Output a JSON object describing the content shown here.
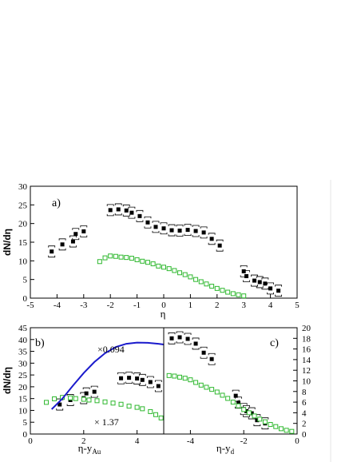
{
  "chart_data": [
    {
      "type": "scatter",
      "panel_label": "a)",
      "xlabel": "η",
      "ylabel": "dN/dη",
      "xlim": [
        -5,
        5
      ],
      "ylim": [
        0,
        30
      ],
      "xticks": [
        "-5",
        "-4",
        "-3",
        "-2",
        "-1",
        "0",
        "1",
        "2",
        "3",
        "4",
        "5"
      ],
      "yticks": [
        "0",
        "5",
        "10",
        "15",
        "20",
        "25",
        "30"
      ],
      "series": [
        {
          "marker": "filled-square-with-brackets",
          "color": "#000000",
          "points": [
            [
              -4.2,
              12.5
            ],
            [
              -3.8,
              14.4
            ],
            [
              -3.4,
              15.2
            ],
            [
              -3.3,
              17.2
            ],
            [
              -3.0,
              17.9
            ],
            [
              -2.0,
              23.6
            ],
            [
              -1.7,
              23.8
            ],
            [
              -1.4,
              23.5
            ],
            [
              -1.2,
              22.9
            ],
            [
              -0.9,
              22.0
            ],
            [
              -0.6,
              20.3
            ],
            [
              -0.3,
              19.1
            ],
            [
              0.0,
              18.7
            ],
            [
              0.3,
              18.2
            ],
            [
              0.6,
              18.1
            ],
            [
              0.9,
              18.3
            ],
            [
              1.2,
              18.0
            ],
            [
              1.5,
              17.6
            ],
            [
              1.8,
              15.9
            ],
            [
              2.1,
              14.1
            ],
            [
              3.0,
              7.2
            ],
            [
              3.1,
              5.9
            ],
            [
              3.4,
              4.7
            ],
            [
              3.6,
              4.3
            ],
            [
              3.8,
              3.9
            ],
            [
              4.0,
              2.6
            ],
            [
              4.3,
              2.0
            ]
          ]
        },
        {
          "marker": "open-square",
          "color": "#2eb82e",
          "points": [
            [
              -2.4,
              9.8
            ],
            [
              -2.2,
              10.8
            ],
            [
              -2.0,
              11.3
            ],
            [
              -1.8,
              11.2
            ],
            [
              -1.6,
              11.0
            ],
            [
              -1.4,
              10.9
            ],
            [
              -1.2,
              10.7
            ],
            [
              -1.0,
              10.3
            ],
            [
              -0.8,
              9.9
            ],
            [
              -0.6,
              9.6
            ],
            [
              -0.4,
              9.2
            ],
            [
              -0.2,
              8.6
            ],
            [
              0.0,
              8.3
            ],
            [
              0.2,
              7.9
            ],
            [
              0.4,
              7.4
            ],
            [
              0.6,
              6.8
            ],
            [
              0.8,
              6.3
            ],
            [
              1.0,
              5.7
            ],
            [
              1.2,
              5.0
            ],
            [
              1.4,
              4.4
            ],
            [
              1.6,
              3.8
            ],
            [
              1.8,
              3.2
            ],
            [
              2.0,
              2.6
            ],
            [
              2.2,
              2.1
            ],
            [
              2.4,
              1.6
            ],
            [
              2.6,
              1.2
            ],
            [
              2.8,
              0.9
            ],
            [
              3.0,
              0.6
            ]
          ]
        }
      ]
    },
    {
      "type": "scatter",
      "panel_label": "b)",
      "xlabel": "η-y",
      "xlabel_sub": "Au",
      "ylabel": "dN/dη",
      "xlim": [
        0,
        5
      ],
      "ylim": [
        0,
        45
      ],
      "xticks": [
        "0",
        "2",
        "4"
      ],
      "yticks": [
        "0",
        "5",
        "10",
        "15",
        "20",
        "25",
        "30",
        "35",
        "40",
        "45"
      ],
      "annotations": [
        "×0.094",
        "× 1.37"
      ],
      "series": [
        {
          "marker": "filled-square-with-brackets",
          "color": "#000000",
          "points": [
            [
              1.1,
              12.5
            ],
            [
              1.5,
              14.4
            ],
            [
              2.0,
              15.2
            ],
            [
              2.1,
              17.2
            ],
            [
              2.4,
              17.9
            ],
            [
              3.4,
              23.6
            ],
            [
              3.7,
              23.8
            ],
            [
              4.0,
              23.5
            ],
            [
              4.2,
              22.9
            ],
            [
              4.5,
              22.0
            ],
            [
              4.8,
              20.3
            ]
          ]
        },
        {
          "marker": "open-square",
          "color": "#2eb82e",
          "points": [
            [
              0.6,
              13.4
            ],
            [
              0.9,
              14.9
            ],
            [
              1.2,
              15.5
            ],
            [
              1.5,
              15.3
            ],
            [
              1.7,
              15.0
            ],
            [
              2.0,
              14.7
            ],
            [
              2.2,
              14.4
            ],
            [
              2.5,
              14.1
            ],
            [
              2.8,
              13.6
            ],
            [
              3.1,
              13.1
            ],
            [
              3.4,
              12.6
            ],
            [
              3.7,
              11.8
            ],
            [
              4.0,
              11.3
            ],
            [
              4.2,
              10.7
            ],
            [
              4.5,
              9.5
            ],
            [
              4.7,
              8.2
            ],
            [
              4.9,
              6.8
            ]
          ]
        },
        {
          "marker": "line",
          "color": "#1a1acc",
          "points": [
            [
              0.8,
              10.5
            ],
            [
              1.2,
              15.0
            ],
            [
              1.6,
              20.5
            ],
            [
              2.0,
              25.8
            ],
            [
              2.4,
              30.5
            ],
            [
              2.8,
              34.2
            ],
            [
              3.2,
              36.8
            ],
            [
              3.6,
              38.2
            ],
            [
              4.0,
              38.7
            ],
            [
              4.4,
              38.6
            ],
            [
              4.8,
              38.2
            ],
            [
              5.0,
              37.9
            ]
          ]
        }
      ]
    },
    {
      "type": "scatter",
      "panel_label": "c)",
      "xlabel": "η-y",
      "xlabel_sub": "d",
      "xlim": [
        -5,
        0
      ],
      "ylim": [
        0,
        20
      ],
      "xticks": [
        "-4",
        "-2",
        "0"
      ],
      "yticks": [
        "0",
        "2",
        "4",
        "6",
        "8",
        "10",
        "12",
        "14",
        "16",
        "18",
        "20"
      ],
      "series": [
        {
          "marker": "filled-square-with-brackets",
          "color": "#000000",
          "points": [
            [
              -4.7,
              18.0
            ],
            [
              -4.4,
              18.2
            ],
            [
              -4.1,
              17.9
            ],
            [
              -3.8,
              17.0
            ],
            [
              -3.5,
              15.3
            ],
            [
              -3.2,
              14.1
            ],
            [
              -2.3,
              7.2
            ],
            [
              -2.2,
              5.9
            ],
            [
              -2.0,
              4.7
            ],
            [
              -1.9,
              4.3
            ],
            [
              -1.7,
              3.9
            ],
            [
              -1.5,
              2.6
            ],
            [
              -1.2,
              2.0
            ]
          ]
        },
        {
          "marker": "open-square",
          "color": "#2eb82e",
          "points": [
            [
              -4.8,
              11.0
            ],
            [
              -4.6,
              10.9
            ],
            [
              -4.4,
              10.7
            ],
            [
              -4.2,
              10.5
            ],
            [
              -4.0,
              10.2
            ],
            [
              -3.8,
              9.7
            ],
            [
              -3.6,
              9.2
            ],
            [
              -3.4,
              8.8
            ],
            [
              -3.2,
              8.4
            ],
            [
              -3.0,
              7.9
            ],
            [
              -2.8,
              7.3
            ],
            [
              -2.6,
              6.7
            ],
            [
              -2.4,
              6.0
            ],
            [
              -2.2,
              5.3
            ],
            [
              -2.0,
              4.6
            ],
            [
              -1.8,
              4.0
            ],
            [
              -1.6,
              3.4
            ],
            [
              -1.4,
              2.8
            ],
            [
              -1.2,
              2.3
            ],
            [
              -1.0,
              1.8
            ],
            [
              -0.8,
              1.4
            ],
            [
              -0.6,
              1.0
            ],
            [
              -0.4,
              0.7
            ],
            [
              -0.2,
              0.5
            ]
          ]
        }
      ]
    }
  ]
}
